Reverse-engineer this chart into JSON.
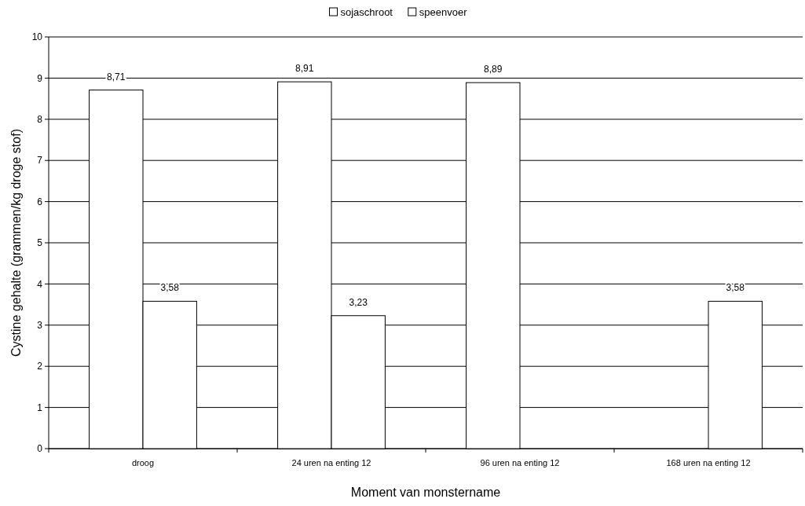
{
  "chart_data": {
    "type": "bar",
    "xlabel": "Moment van monstername",
    "ylabel": "Cystine gehalte (grammen/kg droge stof)",
    "categories": [
      "droog",
      "24 uren na enting 12",
      "96 uren na enting 12",
      "168 uren na enting 12"
    ],
    "series": [
      {
        "name": "sojaschroot",
        "color": "#ffffff",
        "values": [
          8.71,
          8.91,
          8.89,
          null
        ],
        "value_labels": [
          "8,71",
          "8,91",
          "8,89",
          null
        ]
      },
      {
        "name": "speenvoer",
        "color": "#ffffff",
        "values": [
          3.58,
          3.23,
          null,
          3.58
        ],
        "value_labels": [
          "3,58",
          "3,23",
          null,
          "3,58"
        ]
      }
    ],
    "ylim": [
      0,
      10
    ],
    "yticks": [
      0,
      1,
      2,
      3,
      4,
      5,
      6,
      7,
      8,
      9,
      10
    ],
    "grid": "y",
    "legend": "top"
  }
}
